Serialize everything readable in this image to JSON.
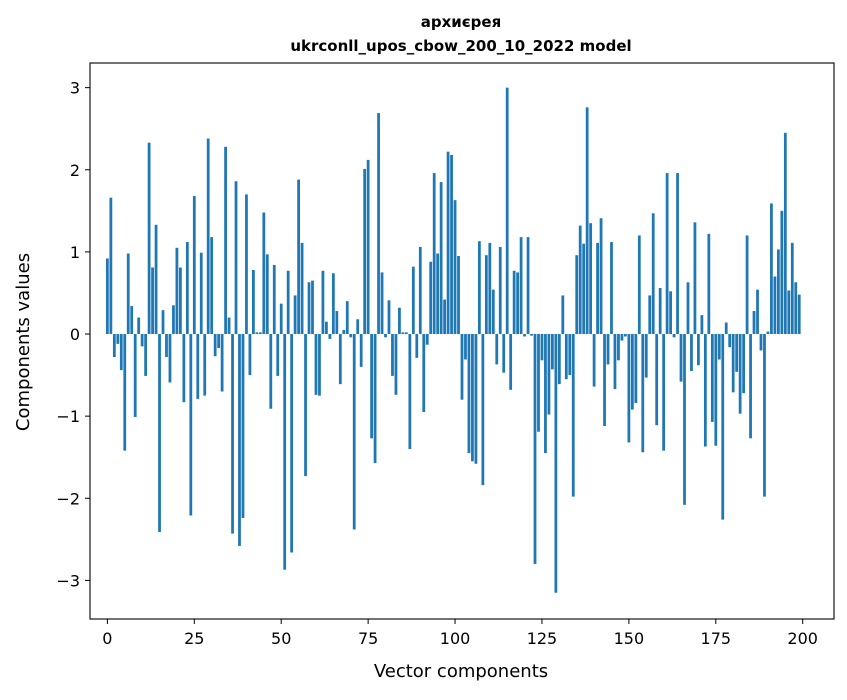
{
  "chart_data": {
    "type": "bar",
    "title": "архиєрея",
    "subtitle": "ukrconll_upos_cbow_200_10_2022 model",
    "xlabel": "Vector components",
    "ylabel": "Components values",
    "xlim": [
      -5,
      209
    ],
    "ylim": [
      -3.47,
      3.3
    ],
    "xticks": [
      0,
      25,
      50,
      75,
      100,
      125,
      150,
      175,
      200
    ],
    "yticks": [
      -3,
      -2,
      -1,
      0,
      1,
      2,
      3
    ],
    "ytick_labels": [
      "−3",
      "−2",
      "−1",
      "0",
      "1",
      "2",
      "3"
    ],
    "grid": false,
    "bar_color": "#1f77b4",
    "x_start": 0,
    "values": [
      0.92,
      1.66,
      -0.28,
      -0.12,
      -0.44,
      -1.42,
      0.98,
      0.34,
      -1.01,
      0.2,
      -0.15,
      -0.51,
      2.33,
      0.81,
      1.33,
      -2.41,
      0.29,
      -0.28,
      -0.59,
      0.35,
      1.05,
      0.81,
      -0.83,
      1.12,
      -2.21,
      1.68,
      -0.79,
      0.99,
      -0.75,
      2.38,
      1.18,
      -0.27,
      -0.17,
      -0.7,
      2.28,
      0.2,
      -2.43,
      1.86,
      -2.58,
      -2.24,
      1.7,
      -0.5,
      0.78,
      0.02,
      0.02,
      1.48,
      0.97,
      -0.91,
      0.84,
      -0.51,
      0.37,
      -2.87,
      0.77,
      -2.66,
      0.47,
      1.88,
      1.11,
      -1.73,
      0.63,
      0.65,
      -0.74,
      -0.75,
      0.77,
      0.15,
      -0.06,
      0.74,
      0.28,
      -0.61,
      0.05,
      0.4,
      -0.04,
      -2.38,
      0.18,
      -0.4,
      2.01,
      2.12,
      -1.27,
      -1.57,
      2.69,
      0.75,
      -0.04,
      0.41,
      -0.51,
      -0.74,
      0.32,
      0.02,
      0.02,
      -1.4,
      0.82,
      -0.29,
      1.06,
      -0.95,
      -0.13,
      0.88,
      1.96,
      0.98,
      1.85,
      0.42,
      2.22,
      2.18,
      1.63,
      0.95,
      -0.8,
      -0.31,
      -1.45,
      -1.55,
      -1.58,
      1.13,
      -1.84,
      0.96,
      1.11,
      0.54,
      -0.37,
      1.06,
      -0.47,
      3.0,
      -0.68,
      0.77,
      0.75,
      1.18,
      -0.03,
      1.18,
      -0.02,
      -2.8,
      -1.19,
      -0.32,
      -1.45,
      -0.98,
      -0.43,
      -3.15,
      -0.61,
      0.47,
      -0.55,
      -0.5,
      -1.98,
      0.96,
      1.32,
      1.1,
      2.76,
      1.35,
      -0.64,
      1.11,
      1.41,
      -1.12,
      -0.37,
      1.12,
      -0.67,
      -0.32,
      -0.08,
      -0.03,
      -1.32,
      -0.92,
      -0.84,
      1.2,
      -1.44,
      -0.53,
      0.47,
      1.47,
      -1.11,
      0.56,
      -1.42,
      1.96,
      0.52,
      -0.04,
      1.96,
      -0.58,
      -2.08,
      0.63,
      -0.45,
      1.36,
      -0.38,
      0.23,
      -1.37,
      1.22,
      -1.07,
      -1.36,
      -0.31,
      -2.26,
      0.14,
      -0.16,
      -0.71,
      -0.46,
      -0.97,
      -0.72,
      1.2,
      -1.27,
      0.28,
      0.54,
      -0.2,
      -1.98,
      0.03,
      1.59,
      0.7,
      1.03,
      1.5,
      2.45,
      0.53,
      1.11,
      0.63,
      0.48
    ]
  }
}
